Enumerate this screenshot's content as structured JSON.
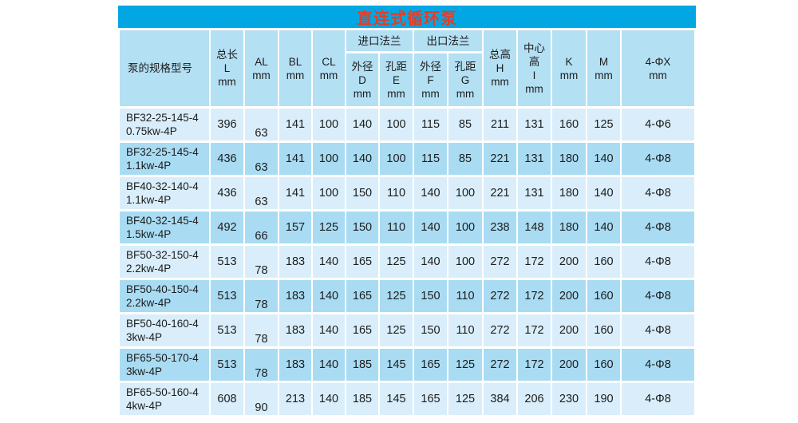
{
  "title": "直连式循环泵",
  "colors": {
    "title_bar": "#00a7e3",
    "title_text": "#e73c25",
    "header_bg": "#b4e0f4",
    "row_light": "#d9eefa",
    "row_dark": "#a9dcf3",
    "text": "#1c1c1c"
  },
  "table": {
    "headers": {
      "model": "泵的规格型号",
      "total_length": "总长\nL\nmm",
      "al": "AL\nmm",
      "bl": "BL\nmm",
      "cl": "CL\nmm",
      "inlet_flange": "进口法兰",
      "inlet_od": "外径\nD\nmm",
      "inlet_pitch": "孔距\nE\nmm",
      "outlet_flange": "出口法兰",
      "outlet_od": "外径\nF\nmm",
      "outlet_pitch": "孔距\nG\nmm",
      "total_height": "总高\nH\nmm",
      "center_height": "中心\n高\nI\nmm",
      "k": "K\nmm",
      "m": "M\nmm",
      "phi": "4-ΦX\nmm"
    },
    "rows": [
      {
        "model": "BF32-25-145-4\n0.75kw-4P",
        "values": [
          "396",
          "63",
          "141",
          "100",
          "140",
          "100",
          "115",
          "85",
          "211",
          "131",
          "160",
          "125",
          "4-Φ6"
        ]
      },
      {
        "model": "BF32-25-145-4\n1.1kw-4P",
        "values": [
          "436",
          "63",
          "141",
          "100",
          "140",
          "100",
          "115",
          "85",
          "221",
          "131",
          "180",
          "140",
          "4-Φ8"
        ]
      },
      {
        "model": "BF40-32-140-4\n1.1kw-4P",
        "values": [
          "436",
          "63",
          "141",
          "100",
          "150",
          "110",
          "140",
          "100",
          "221",
          "131",
          "180",
          "140",
          "4-Φ8"
        ]
      },
      {
        "model": "BF40-32-145-4\n1.5kw-4P",
        "values": [
          "492",
          "66",
          "157",
          "125",
          "150",
          "110",
          "140",
          "100",
          "238",
          "148",
          "180",
          "140",
          "4-Φ8"
        ]
      },
      {
        "model": "BF50-32-150-4\n2.2kw-4P",
        "values": [
          "513",
          "78",
          "183",
          "140",
          "165",
          "125",
          "140",
          "100",
          "272",
          "172",
          "200",
          "160",
          "4-Φ8"
        ]
      },
      {
        "model": "BF50-40-150-4\n2.2kw-4P",
        "values": [
          "513",
          "78",
          "183",
          "140",
          "165",
          "125",
          "150",
          "110",
          "272",
          "172",
          "200",
          "160",
          "4-Φ8"
        ]
      },
      {
        "model": "BF50-40-160-4\n3kw-4P",
        "values": [
          "513",
          "78",
          "183",
          "140",
          "165",
          "125",
          "150",
          "110",
          "272",
          "172",
          "200",
          "160",
          "4-Φ8"
        ]
      },
      {
        "model": "BF65-50-170-4\n3kw-4P",
        "values": [
          "513",
          "78",
          "183",
          "140",
          "185",
          "145",
          "165",
          "125",
          "272",
          "172",
          "200",
          "160",
          "4-Φ8"
        ]
      },
      {
        "model": "BF65-50-160-4\n4kw-4P",
        "values": [
          "608",
          "90",
          "213",
          "140",
          "185",
          "145",
          "165",
          "125",
          "384",
          "206",
          "230",
          "190",
          "4-Φ8"
        ]
      }
    ]
  }
}
